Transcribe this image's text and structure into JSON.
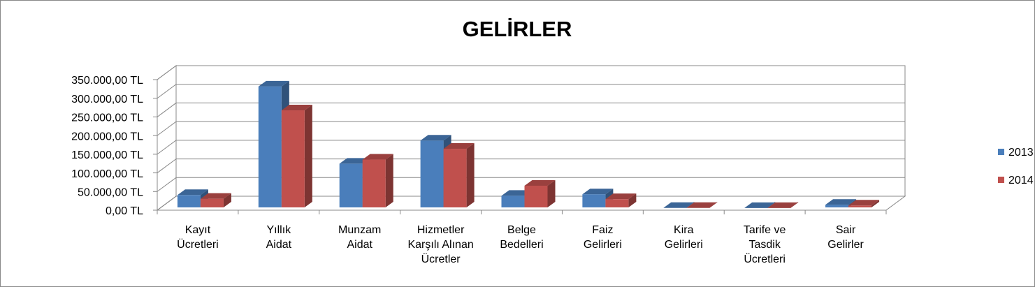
{
  "chart_data": {
    "type": "bar3d",
    "title": "GELİRLER",
    "categories": [
      "Kayıt\nÜcretleri",
      "Yıllık\nAidat",
      "Munzam\nAidat",
      "Hizmetler\nKarşılı Alınan\nÜcretler",
      "Belge\nBedelleri",
      "Faiz\nGelirleri",
      "Kira\nGelirleri",
      "Tarife ve\nTasdik\nÜcretleri",
      "Sair\nGelirler"
    ],
    "series": [
      {
        "name": "2013",
        "color": "#4a7ebb",
        "values": [
          35000,
          326000,
          119000,
          181000,
          33000,
          37000,
          500,
          300,
          9000
        ]
      },
      {
        "name": "2014",
        "color": "#c0504d",
        "values": [
          25000,
          262000,
          130000,
          159000,
          60000,
          24000,
          500,
          300,
          7000
        ]
      }
    ],
    "ylim": [
      0,
      350000
    ],
    "yticks": [
      {
        "value": 0,
        "label": "0,00 TL"
      },
      {
        "value": 50000,
        "label": "50.000,00 TL"
      },
      {
        "value": 100000,
        "label": "100.000,00 TL"
      },
      {
        "value": 150000,
        "label": "150.000,00 TL"
      },
      {
        "value": 200000,
        "label": "200.000,00 TL"
      },
      {
        "value": 250000,
        "label": "250.000,00 TL"
      },
      {
        "value": 300000,
        "label": "300.000,00 TL"
      },
      {
        "value": 350000,
        "label": "350.000,00 TL"
      }
    ],
    "grid": true,
    "legend": "right"
  }
}
